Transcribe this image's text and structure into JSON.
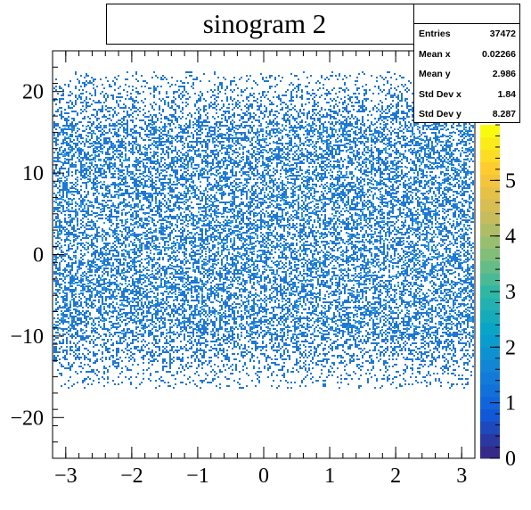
{
  "chart_data": {
    "type": "heatmap",
    "title": "sinogram 2",
    "xlabel": "",
    "ylabel": "",
    "xlim": [
      -3.2,
      3.2
    ],
    "ylim": [
      -25,
      25
    ],
    "x_ticks": [
      -3,
      -2,
      -1,
      0,
      1,
      2,
      3
    ],
    "y_ticks": [
      -20,
      -10,
      0,
      10,
      20
    ],
    "colorbar": {
      "range": [
        0,
        6
      ],
      "ticks": [
        0,
        1,
        2,
        3,
        4,
        5
      ],
      "palette": [
        "#352a87",
        "#0f5cdd",
        "#1481d6",
        "#06a4ca",
        "#2eb7a4",
        "#87bf77",
        "#d1bb59",
        "#fec832",
        "#f9fb0e"
      ]
    },
    "populated_y_range": [
      -16.5,
      22.5
    ],
    "dense_y_range": [
      -10,
      16
    ],
    "dominant_color": "#1f77d4",
    "stats": {
      "entries_label": "Entries",
      "entries": "37472",
      "mean_x_label": "Mean x",
      "mean_x": "0.02266",
      "mean_y_label": "Mean y",
      "mean_y": "2.986",
      "std_x_label": "Std Dev x",
      "std_x": "1.84",
      "std_y_label": "Std Dev y",
      "std_y": "8.287"
    }
  }
}
